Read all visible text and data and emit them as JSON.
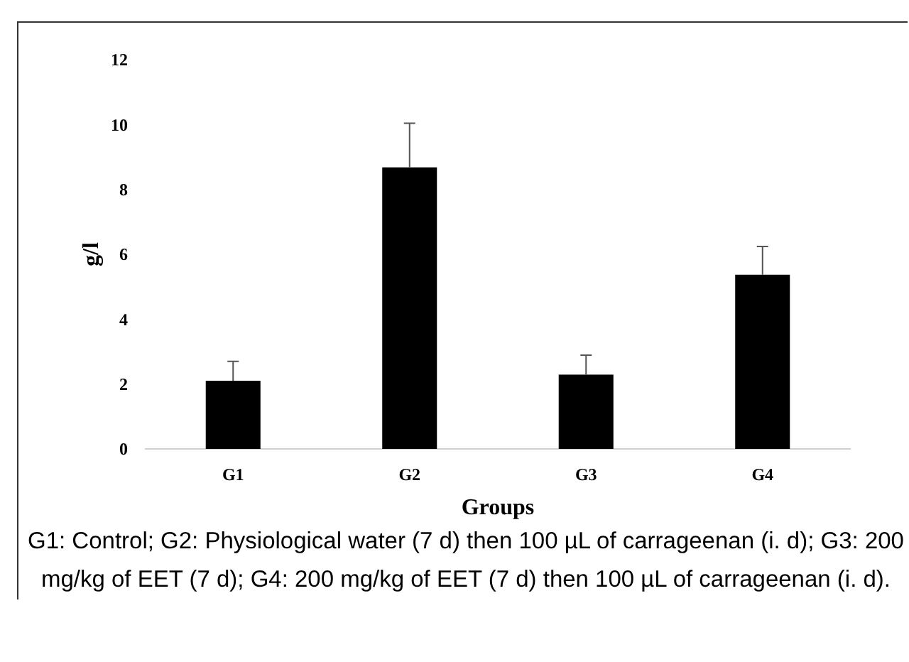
{
  "chart_data": {
    "type": "bar",
    "xlabel": "Groups",
    "ylabel": "g/l",
    "categories": [
      "G1",
      "G2",
      "G3",
      "G4"
    ],
    "values": [
      2.1,
      8.68,
      2.29,
      5.37
    ],
    "errors": [
      [
        2.1,
        2.7
      ],
      [
        8.68,
        10.04
      ],
      [
        2.29,
        2.89
      ],
      [
        5.37,
        6.24
      ]
    ],
    "color": "#000000",
    "ylim": [
      0,
      12
    ],
    "yticks": [
      0,
      2,
      4,
      6,
      8,
      10,
      12
    ],
    "annotations": [
      "G1: Control; G2: Physiological water (7 d) then 100 µL of carrageenan (i. d); G3: 200 mg/kg of EET (7 d); G4: 200 mg/kg of EET (7 d) then 100 µL of carrageenan (i. d)."
    ]
  }
}
